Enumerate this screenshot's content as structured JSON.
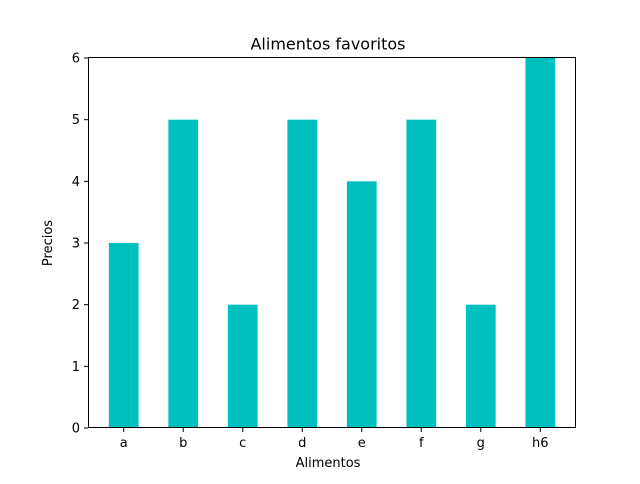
{
  "chart_data": {
    "type": "bar",
    "title": "Alimentos favoritos",
    "xlabel": "Alimentos",
    "ylabel": "Precios",
    "categories": [
      "a",
      "b",
      "c",
      "d",
      "e",
      "f",
      "g",
      "h6"
    ],
    "values": [
      3,
      5,
      2,
      5,
      4,
      5,
      2,
      6
    ],
    "ylim": [
      0,
      6
    ],
    "yticks": [
      0,
      1,
      2,
      3,
      4,
      5,
      6
    ],
    "grid": false,
    "legend": "none",
    "bar_color": "#00bfbf",
    "axis_color": "#000000"
  }
}
